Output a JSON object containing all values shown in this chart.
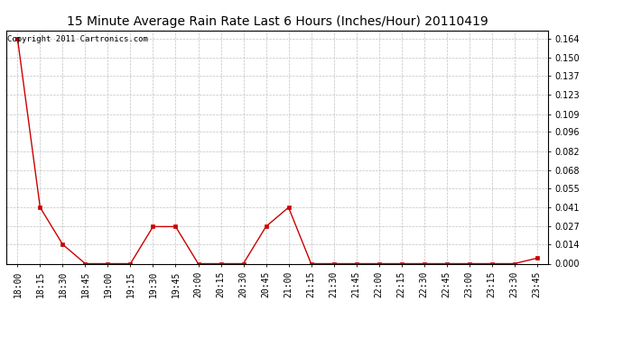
{
  "title": "15 Minute Average Rain Rate Last 6 Hours (Inches/Hour) 20110419",
  "copyright_text": "Copyright 2011 Cartronics.com",
  "line_color": "#cc0000",
  "marker_color": "#cc0000",
  "bg_color": "#ffffff",
  "grid_color": "#c0c0c0",
  "x_labels": [
    "18:00",
    "18:15",
    "18:30",
    "18:45",
    "19:00",
    "19:15",
    "19:30",
    "19:45",
    "20:00",
    "20:15",
    "20:30",
    "20:45",
    "21:00",
    "21:15",
    "21:30",
    "21:45",
    "22:00",
    "22:15",
    "22:30",
    "22:45",
    "23:00",
    "23:15",
    "23:30",
    "23:45"
  ],
  "y_values": [
    0.164,
    0.041,
    0.014,
    0.0,
    0.0,
    0.0,
    0.027,
    0.027,
    0.0,
    0.0,
    0.0,
    0.027,
    0.041,
    0.0,
    0.0,
    0.0,
    0.0,
    0.0,
    0.0,
    0.0,
    0.0,
    0.0,
    0.0,
    0.004
  ],
  "y_ticks": [
    0.0,
    0.014,
    0.027,
    0.041,
    0.055,
    0.068,
    0.082,
    0.096,
    0.109,
    0.123,
    0.137,
    0.15,
    0.164
  ],
  "ylim": [
    0.0,
    0.17
  ],
  "title_fontsize": 10,
  "tick_fontsize": 7,
  "copyright_fontsize": 6.5
}
